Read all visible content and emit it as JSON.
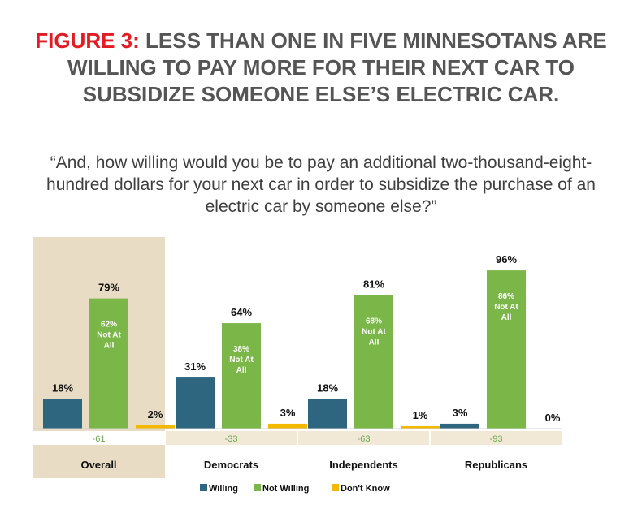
{
  "title": {
    "prefix": "FIGURE 3:",
    "text": "LESS THAN ONE IN FIVE MINNESOTANS ARE WILLING TO PAY MORE FOR THEIR NEXT CAR TO SUBSIDIZE SOMEONE ELSE’S ELECTRIC CAR."
  },
  "subtitle": "“And, how willing would you be to pay an additional two-thousand-eight-hundred dollars for your next car in order to subsidize the purchase of an electric car by someone else?”",
  "colors": {
    "willing": "#2e6680",
    "not_willing": "#7ab648",
    "dont_know": "#f5b800",
    "highlight": "#e8dcc4",
    "net_band": "#f1e8d6"
  },
  "chart_data": {
    "type": "bar",
    "title": "",
    "xlabel": "",
    "ylabel": "",
    "ylim": [
      0,
      100
    ],
    "categories": [
      "Overall",
      "Democrats",
      "Independents",
      "Republicans"
    ],
    "series": [
      {
        "name": "Willing",
        "values": [
          18,
          31,
          18,
          3
        ],
        "labels": [
          "18%",
          "31%",
          "18%",
          "3%"
        ]
      },
      {
        "name": "Not Willing",
        "values": [
          79,
          64,
          81,
          96
        ],
        "labels": [
          "79%",
          "64%",
          "81%",
          "96%"
        ]
      },
      {
        "name": "Don't Know",
        "values": [
          2,
          3,
          1,
          0
        ],
        "labels": [
          "2%",
          "3%",
          "1%",
          "0%"
        ]
      }
    ],
    "not_at_all": [
      {
        "pct": "62%",
        "line1": "Not At",
        "line2": "All"
      },
      {
        "pct": "38%",
        "line1": "Not At",
        "line2": "All"
      },
      {
        "pct": "68%",
        "line1": "Not At",
        "line2": "All"
      },
      {
        "pct": "86%",
        "line1": "Not At",
        "line2": "All"
      }
    ],
    "net": [
      "-61",
      "-33",
      "-63",
      "-93"
    ],
    "highlighted_category": "Overall",
    "legend": [
      "Willing",
      "Not Willing",
      "Don't Know"
    ],
    "legend_position": "bottom"
  }
}
